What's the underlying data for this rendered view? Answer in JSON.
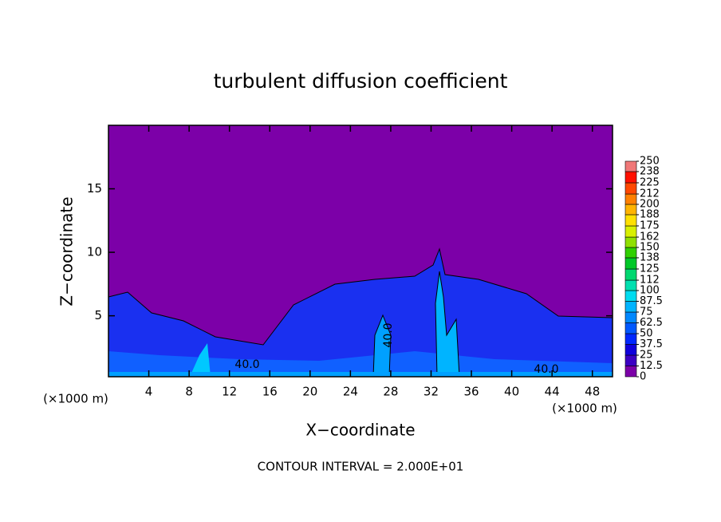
{
  "chart_data": {
    "type": "contour",
    "title": "turbulent diffusion coefficient",
    "xlabel": "X−coordinate",
    "ylabel": "Z−coordinate",
    "x_unit_left": "(×1000 m)",
    "x_unit_right": "(×1000 m)",
    "footer": "CONTOUR INTERVAL = 2.000E+01",
    "contour_labels": [
      "40.0",
      "40.0",
      "40.0"
    ],
    "xlim": [
      0,
      50
    ],
    "ylim": [
      0.2,
      20
    ],
    "xticks": [
      4,
      8,
      12,
      16,
      20,
      24,
      28,
      32,
      36,
      40,
      44,
      48
    ],
    "yticks": [
      5,
      10,
      15
    ],
    "colorbar_lim": [
      0,
      250
    ],
    "colorbar_ticks": [
      0,
      12.5,
      25,
      37.5,
      50,
      62.5,
      75,
      87.5,
      100,
      112,
      125,
      138,
      150,
      162,
      175,
      188,
      200,
      212,
      225,
      238,
      250
    ],
    "colorbar_colors": [
      "#7c00a8",
      "#3c00c4",
      "#1000dc",
      "#0028ff",
      "#0058ff",
      "#0088ff",
      "#00b4ff",
      "#00dcf0",
      "#00e0b0",
      "#00d870",
      "#00c828",
      "#30d000",
      "#90e000",
      "#d8f000",
      "#ffe000",
      "#ffb400",
      "#ff8000",
      "#ff4800",
      "#ff1000",
      "#f07878"
    ]
  }
}
